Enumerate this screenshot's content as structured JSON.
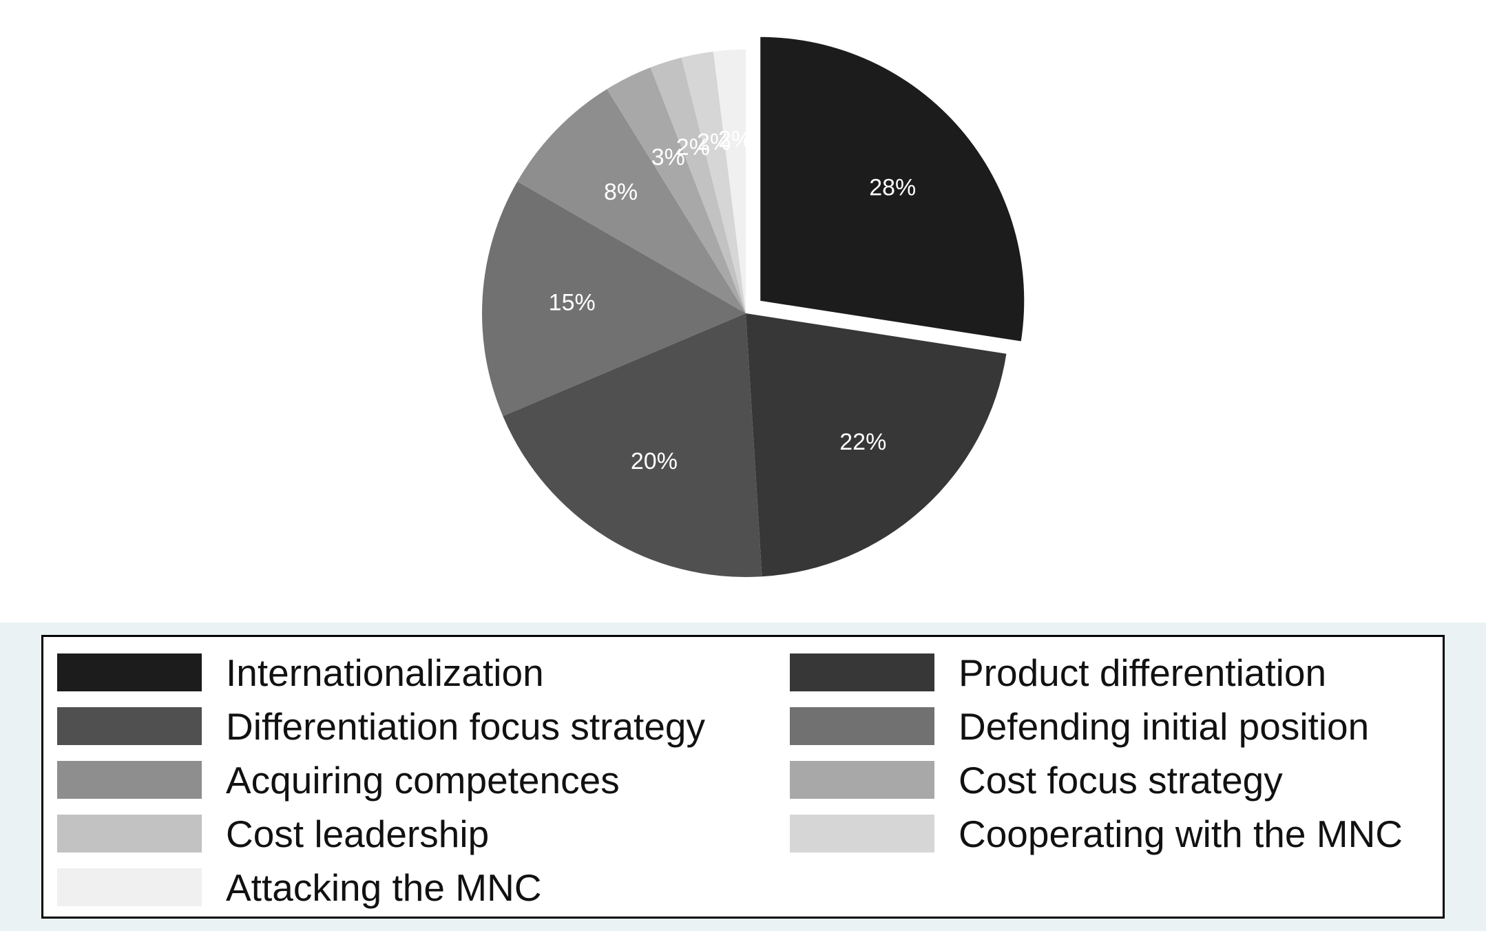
{
  "chart_data": {
    "type": "pie",
    "unit": "%",
    "start_angle_deg": 0,
    "direction": "clockwise",
    "exploded": [
      "Internationalization"
    ],
    "slices": [
      {
        "label": "Internationalization",
        "value": 28,
        "display": "28%",
        "color": "#1c1c1c"
      },
      {
        "label": "Product differentiation",
        "value": 22,
        "display": "22%",
        "color": "#373737"
      },
      {
        "label": "Differentiation focus strategy",
        "value": 20,
        "display": "20%",
        "color": "#505050"
      },
      {
        "label": "Defending initial position",
        "value": 15,
        "display": "15%",
        "color": "#717171"
      },
      {
        "label": "Acquiring competences",
        "value": 8,
        "display": "8%",
        "color": "#8e8e8e"
      },
      {
        "label": "Cost focus strategy",
        "value": 3,
        "display": "3%",
        "color": "#a8a8a8"
      },
      {
        "label": "Cost leadership",
        "value": 2,
        "display": "2%",
        "color": "#c2c2c2"
      },
      {
        "label": "Cooperating with the MNC",
        "value": 2,
        "display": "2%",
        "color": "#d6d6d6"
      },
      {
        "label": "Attacking the MNC",
        "value": 2,
        "display": "2%",
        "color": "#f0f0f0"
      }
    ],
    "legend": {
      "position": "bottom",
      "columns": 2,
      "entries": [
        "Internationalization",
        "Product differentiation",
        "Differentiation focus strategy",
        "Defending initial position",
        "Acquiring competences",
        "Cost focus strategy",
        "Cost leadership",
        "Cooperating with the MNC",
        "Attacking the MNC"
      ]
    }
  }
}
